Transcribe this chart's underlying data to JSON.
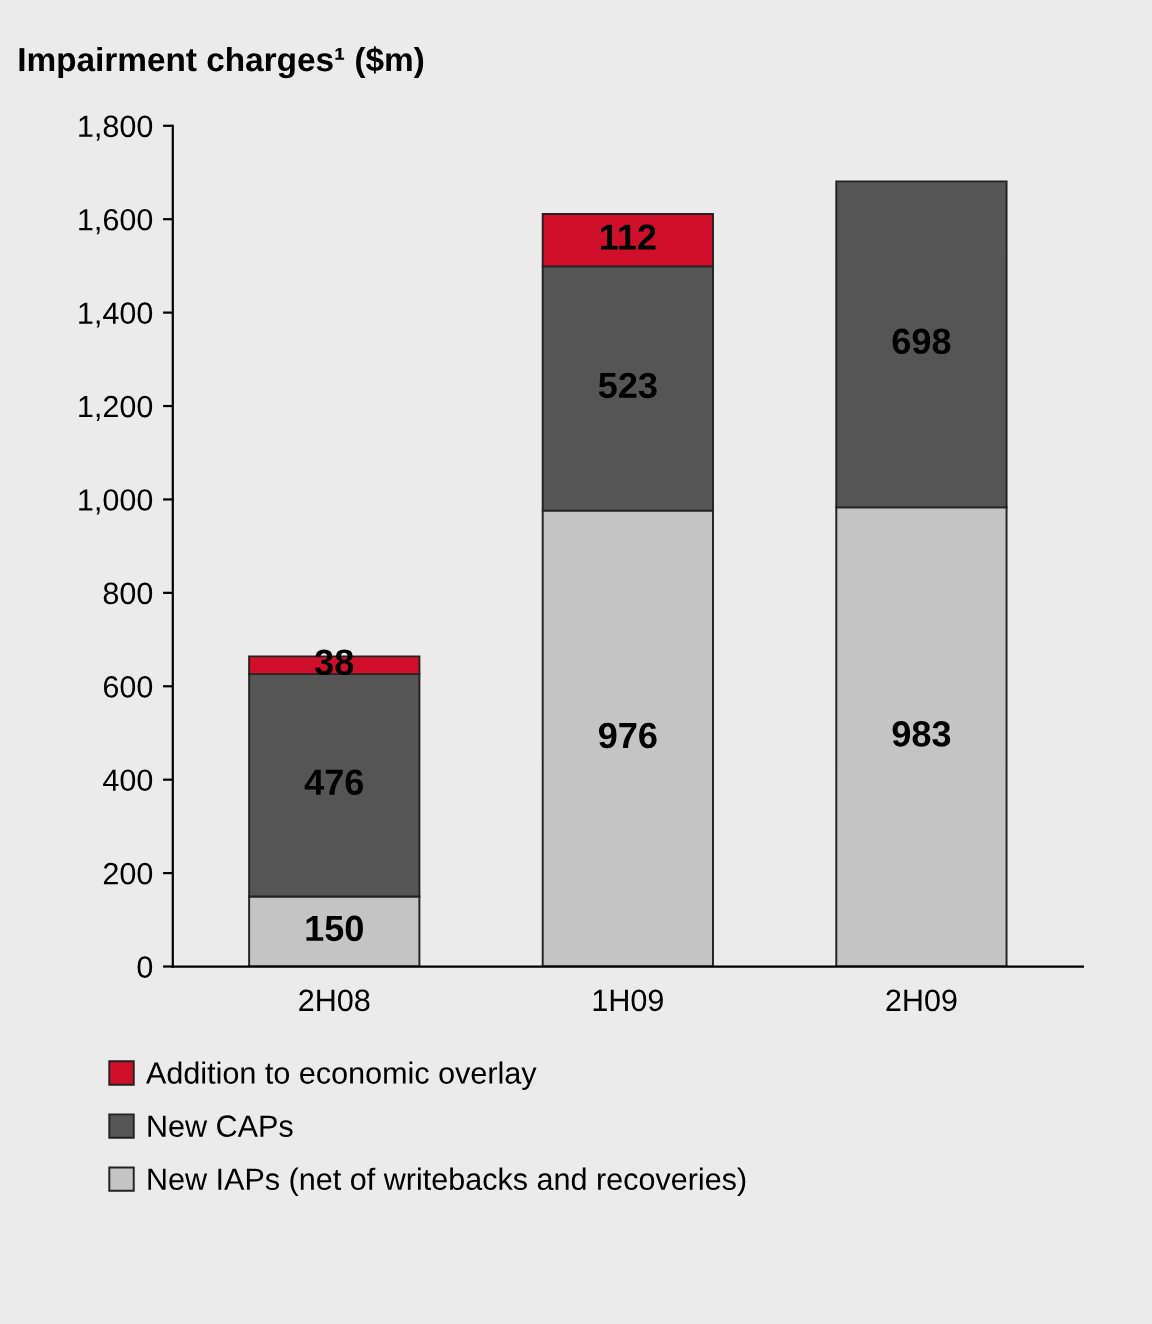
{
  "chart_data": {
    "type": "bar",
    "stacked": true,
    "title": "Impairment charges¹ ($m)",
    "categories": [
      "2H08",
      "1H09",
      "2H09"
    ],
    "series": [
      {
        "name": "New IAPs (net of writebacks and recoveries)",
        "color": "#c4c4c4",
        "values": [
          150,
          976,
          983
        ]
      },
      {
        "name": "New CAPs",
        "color": "#555555",
        "values": [
          476,
          523,
          698
        ]
      },
      {
        "name": "Addition to economic overlay",
        "color": "#d0102a",
        "values": [
          38,
          112,
          null
        ]
      }
    ],
    "ylim": [
      0,
      1800
    ],
    "yticks": [
      0,
      200,
      400,
      600,
      800,
      {
        "value": 1000,
        "label": "1,000"
      },
      {
        "value": 1200,
        "label": "1,200"
      },
      {
        "value": 1400,
        "label": "1,400"
      },
      {
        "value": 1600,
        "label": "1,600"
      },
      {
        "value": 1800,
        "label": "1,800"
      }
    ],
    "data_labels": true,
    "grid": false,
    "legend": "bottom"
  }
}
